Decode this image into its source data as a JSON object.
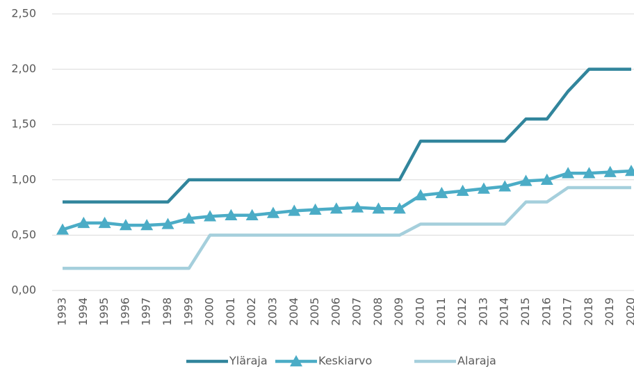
{
  "chart_data": {
    "type": "line",
    "categories": [
      "1993",
      "1994",
      "1995",
      "1996",
      "1997",
      "1998",
      "1999",
      "2000",
      "2001",
      "2002",
      "2003",
      "2004",
      "2005",
      "2006",
      "2007",
      "2008",
      "2009",
      "2010",
      "2011",
      "2012",
      "2013",
      "2014",
      "2015",
      "2016",
      "2017",
      "2018",
      "2019",
      "2020"
    ],
    "series": [
      {
        "name": "Yläraja",
        "color": "#31859c",
        "marker": "none",
        "values": [
          0.8,
          0.8,
          0.8,
          0.8,
          0.8,
          0.8,
          1.0,
          1.0,
          1.0,
          1.0,
          1.0,
          1.0,
          1.0,
          1.0,
          1.0,
          1.0,
          1.0,
          1.35,
          1.35,
          1.35,
          1.35,
          1.35,
          1.55,
          1.55,
          1.8,
          2.0,
          2.0,
          2.0
        ]
      },
      {
        "name": "Keskiarvo",
        "color": "#4bacc6",
        "marker": "triangle",
        "values": [
          0.55,
          0.61,
          0.61,
          0.59,
          0.59,
          0.6,
          0.65,
          0.67,
          0.68,
          0.68,
          0.7,
          0.72,
          0.73,
          0.74,
          0.75,
          0.74,
          0.74,
          0.86,
          0.88,
          0.9,
          0.92,
          0.94,
          0.99,
          1.0,
          1.06,
          1.06,
          1.07,
          1.08
        ]
      },
      {
        "name": "Alaraja",
        "color": "#a5cfdc",
        "marker": "none",
        "values": [
          0.2,
          0.2,
          0.2,
          0.2,
          0.2,
          0.2,
          0.2,
          0.5,
          0.5,
          0.5,
          0.5,
          0.5,
          0.5,
          0.5,
          0.5,
          0.5,
          0.5,
          0.6,
          0.6,
          0.6,
          0.6,
          0.6,
          0.8,
          0.8,
          0.93,
          0.93,
          0.93,
          0.93
        ]
      }
    ],
    "ylim": [
      0,
      2.5
    ],
    "yticks": [
      {
        "value": 0,
        "label": "0,00"
      },
      {
        "value": 0.5,
        "label": "0,50"
      },
      {
        "value": 1,
        "label": "1,00"
      },
      {
        "value": 1.5,
        "label": "1,50"
      },
      {
        "value": 2,
        "label": "2,00"
      },
      {
        "value": 2.5,
        "label": "2,50"
      }
    ],
    "grid": true,
    "legend": "bottom"
  }
}
